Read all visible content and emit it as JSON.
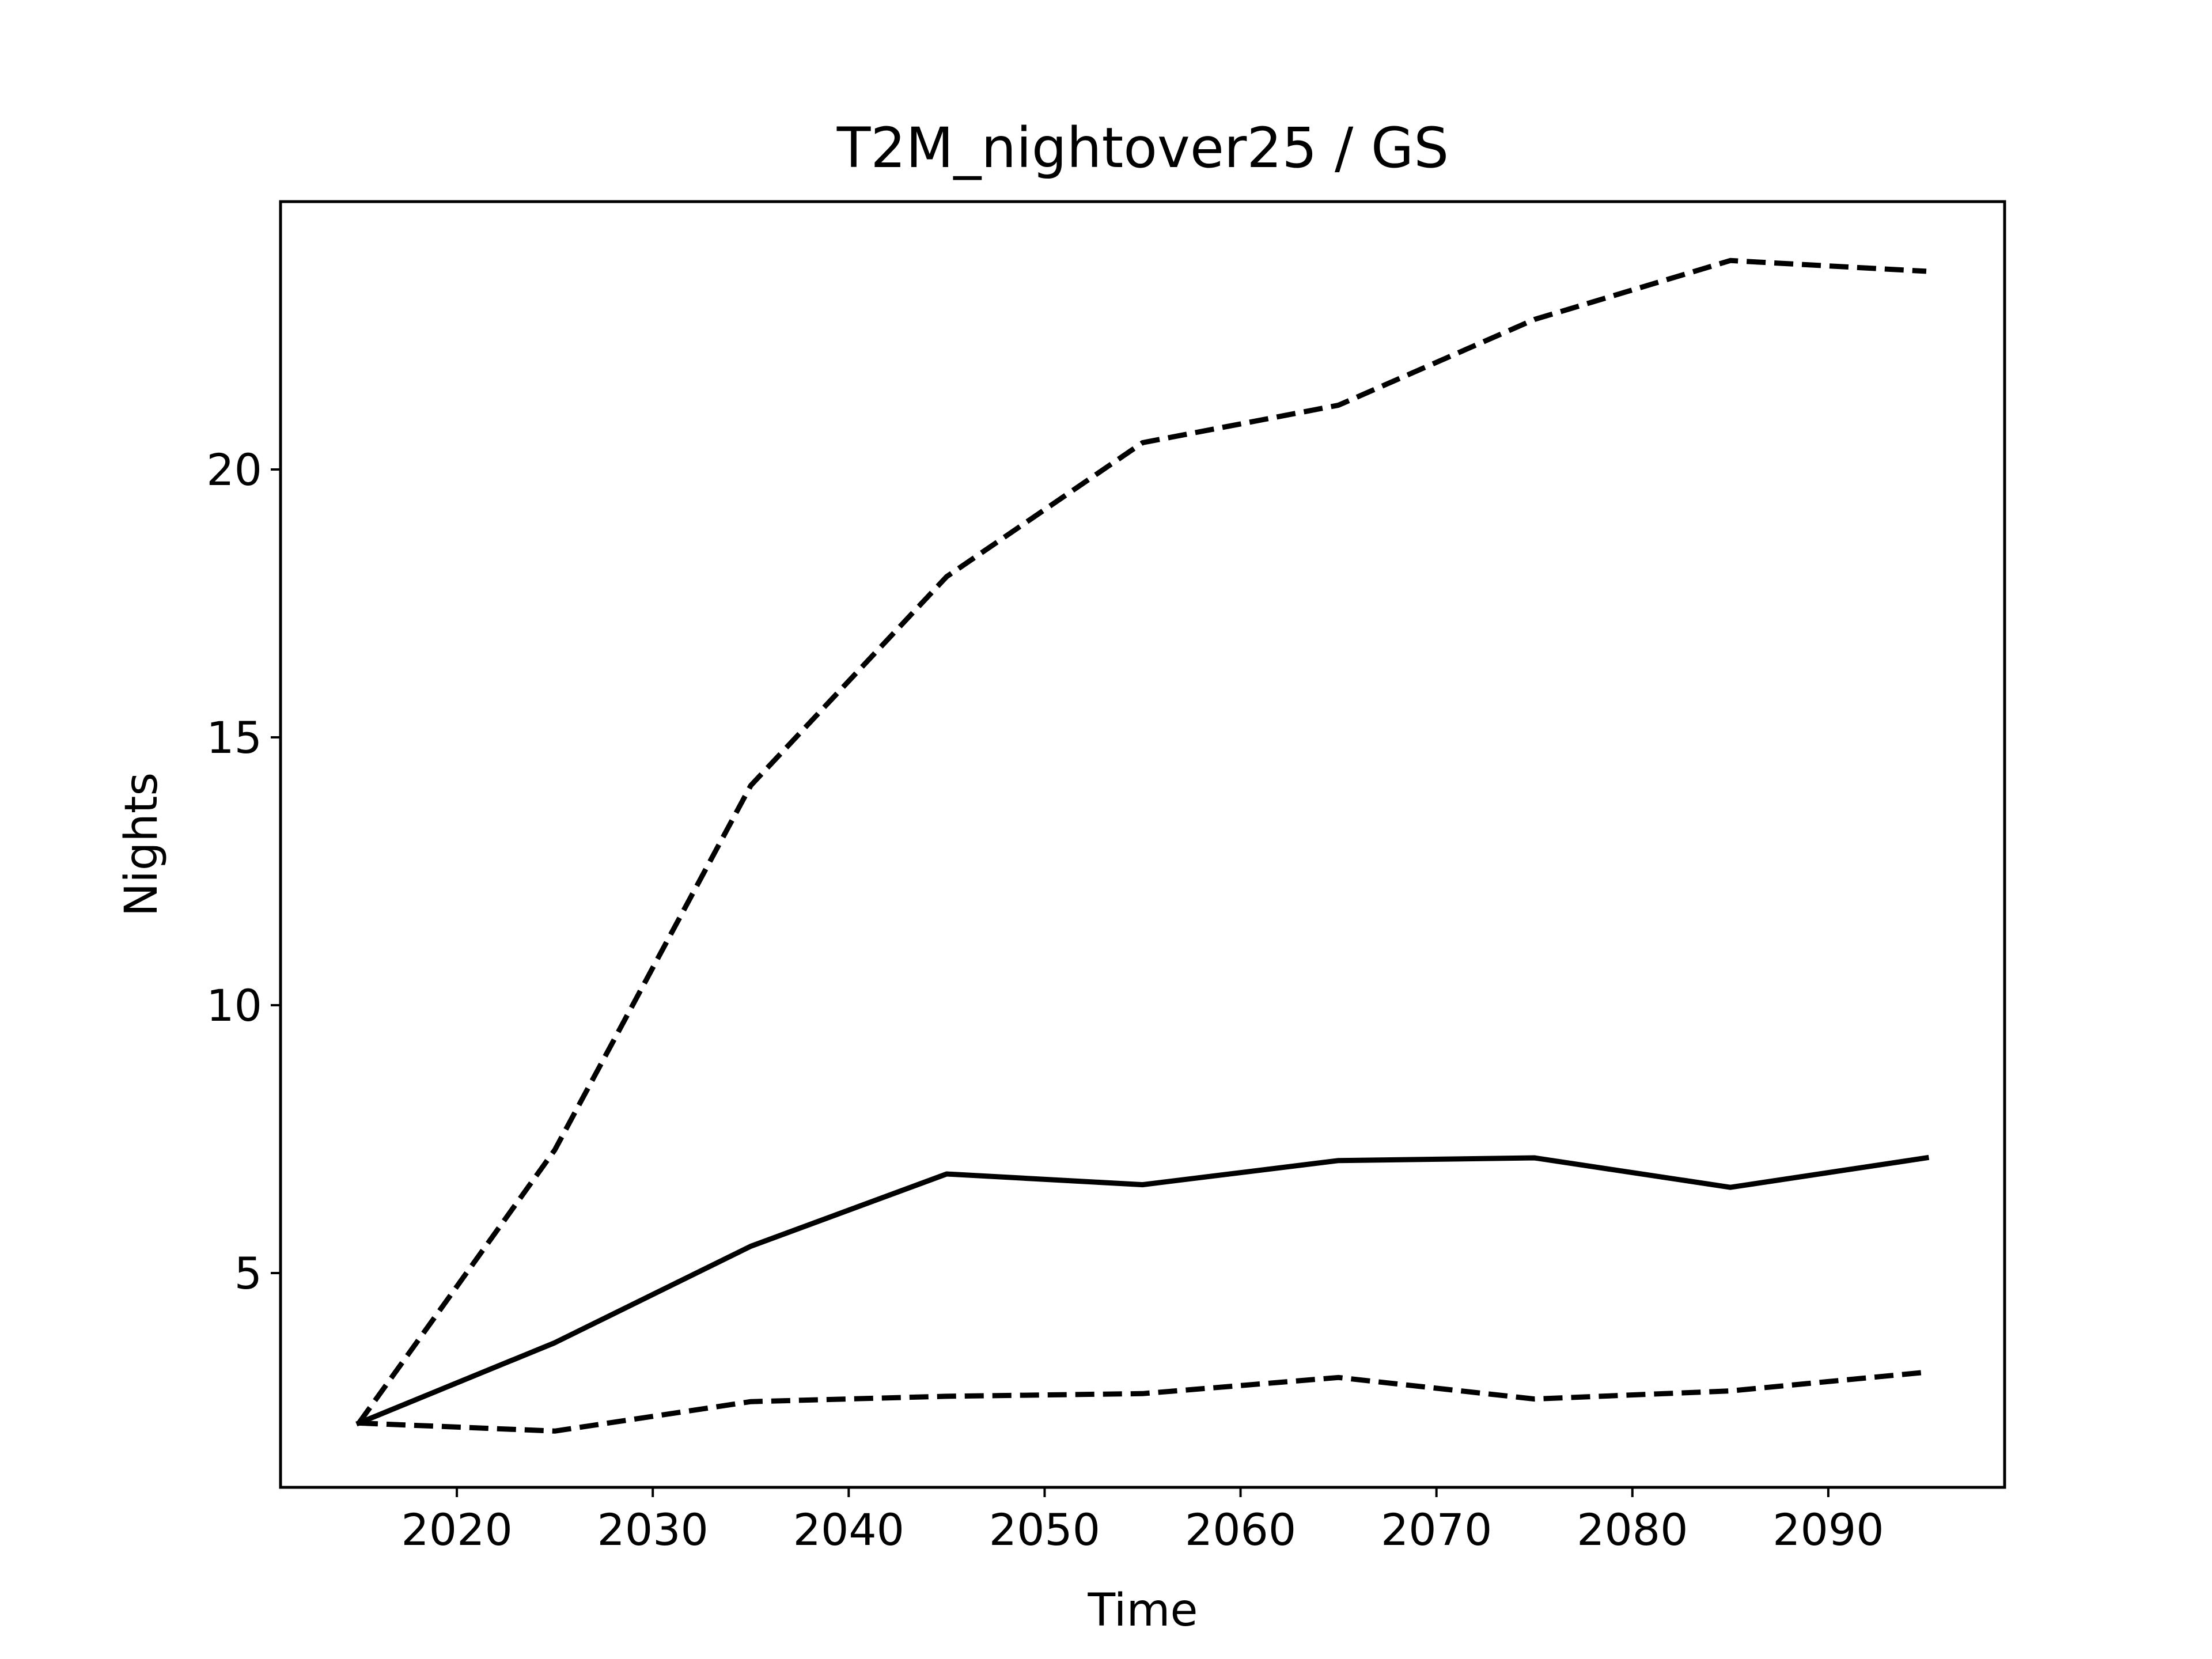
{
  "chart_data": {
    "type": "line",
    "title": "T2M_nightover25 / GS",
    "xlabel": "Time",
    "ylabel": "Nights",
    "xlim": [
      2011,
      2099
    ],
    "ylim": [
      1,
      25
    ],
    "x_ticks": [
      2020,
      2030,
      2040,
      2050,
      2060,
      2070,
      2080,
      2090
    ],
    "y_ticks": [
      5,
      10,
      15,
      20
    ],
    "grid": false,
    "legend": "none",
    "x": [
      2015,
      2025,
      2035,
      2045,
      2055,
      2065,
      2075,
      2085,
      2095
    ],
    "series": [
      {
        "values": [
          2.2,
          3.7,
          5.5,
          6.85,
          6.65,
          7.1,
          7.15,
          6.6,
          7.15
        ],
        "style": "solid",
        "color": "#000000"
      },
      {
        "values": [
          2.2,
          7.3,
          14.1,
          18.0,
          20.5,
          21.2,
          22.8,
          23.9,
          23.7
        ],
        "style": "dashed",
        "color": "#000000"
      },
      {
        "values": [
          2.2,
          2.05,
          2.6,
          2.7,
          2.75,
          3.05,
          2.65,
          2.8,
          3.15
        ],
        "style": "dashed",
        "color": "#000000"
      }
    ]
  }
}
